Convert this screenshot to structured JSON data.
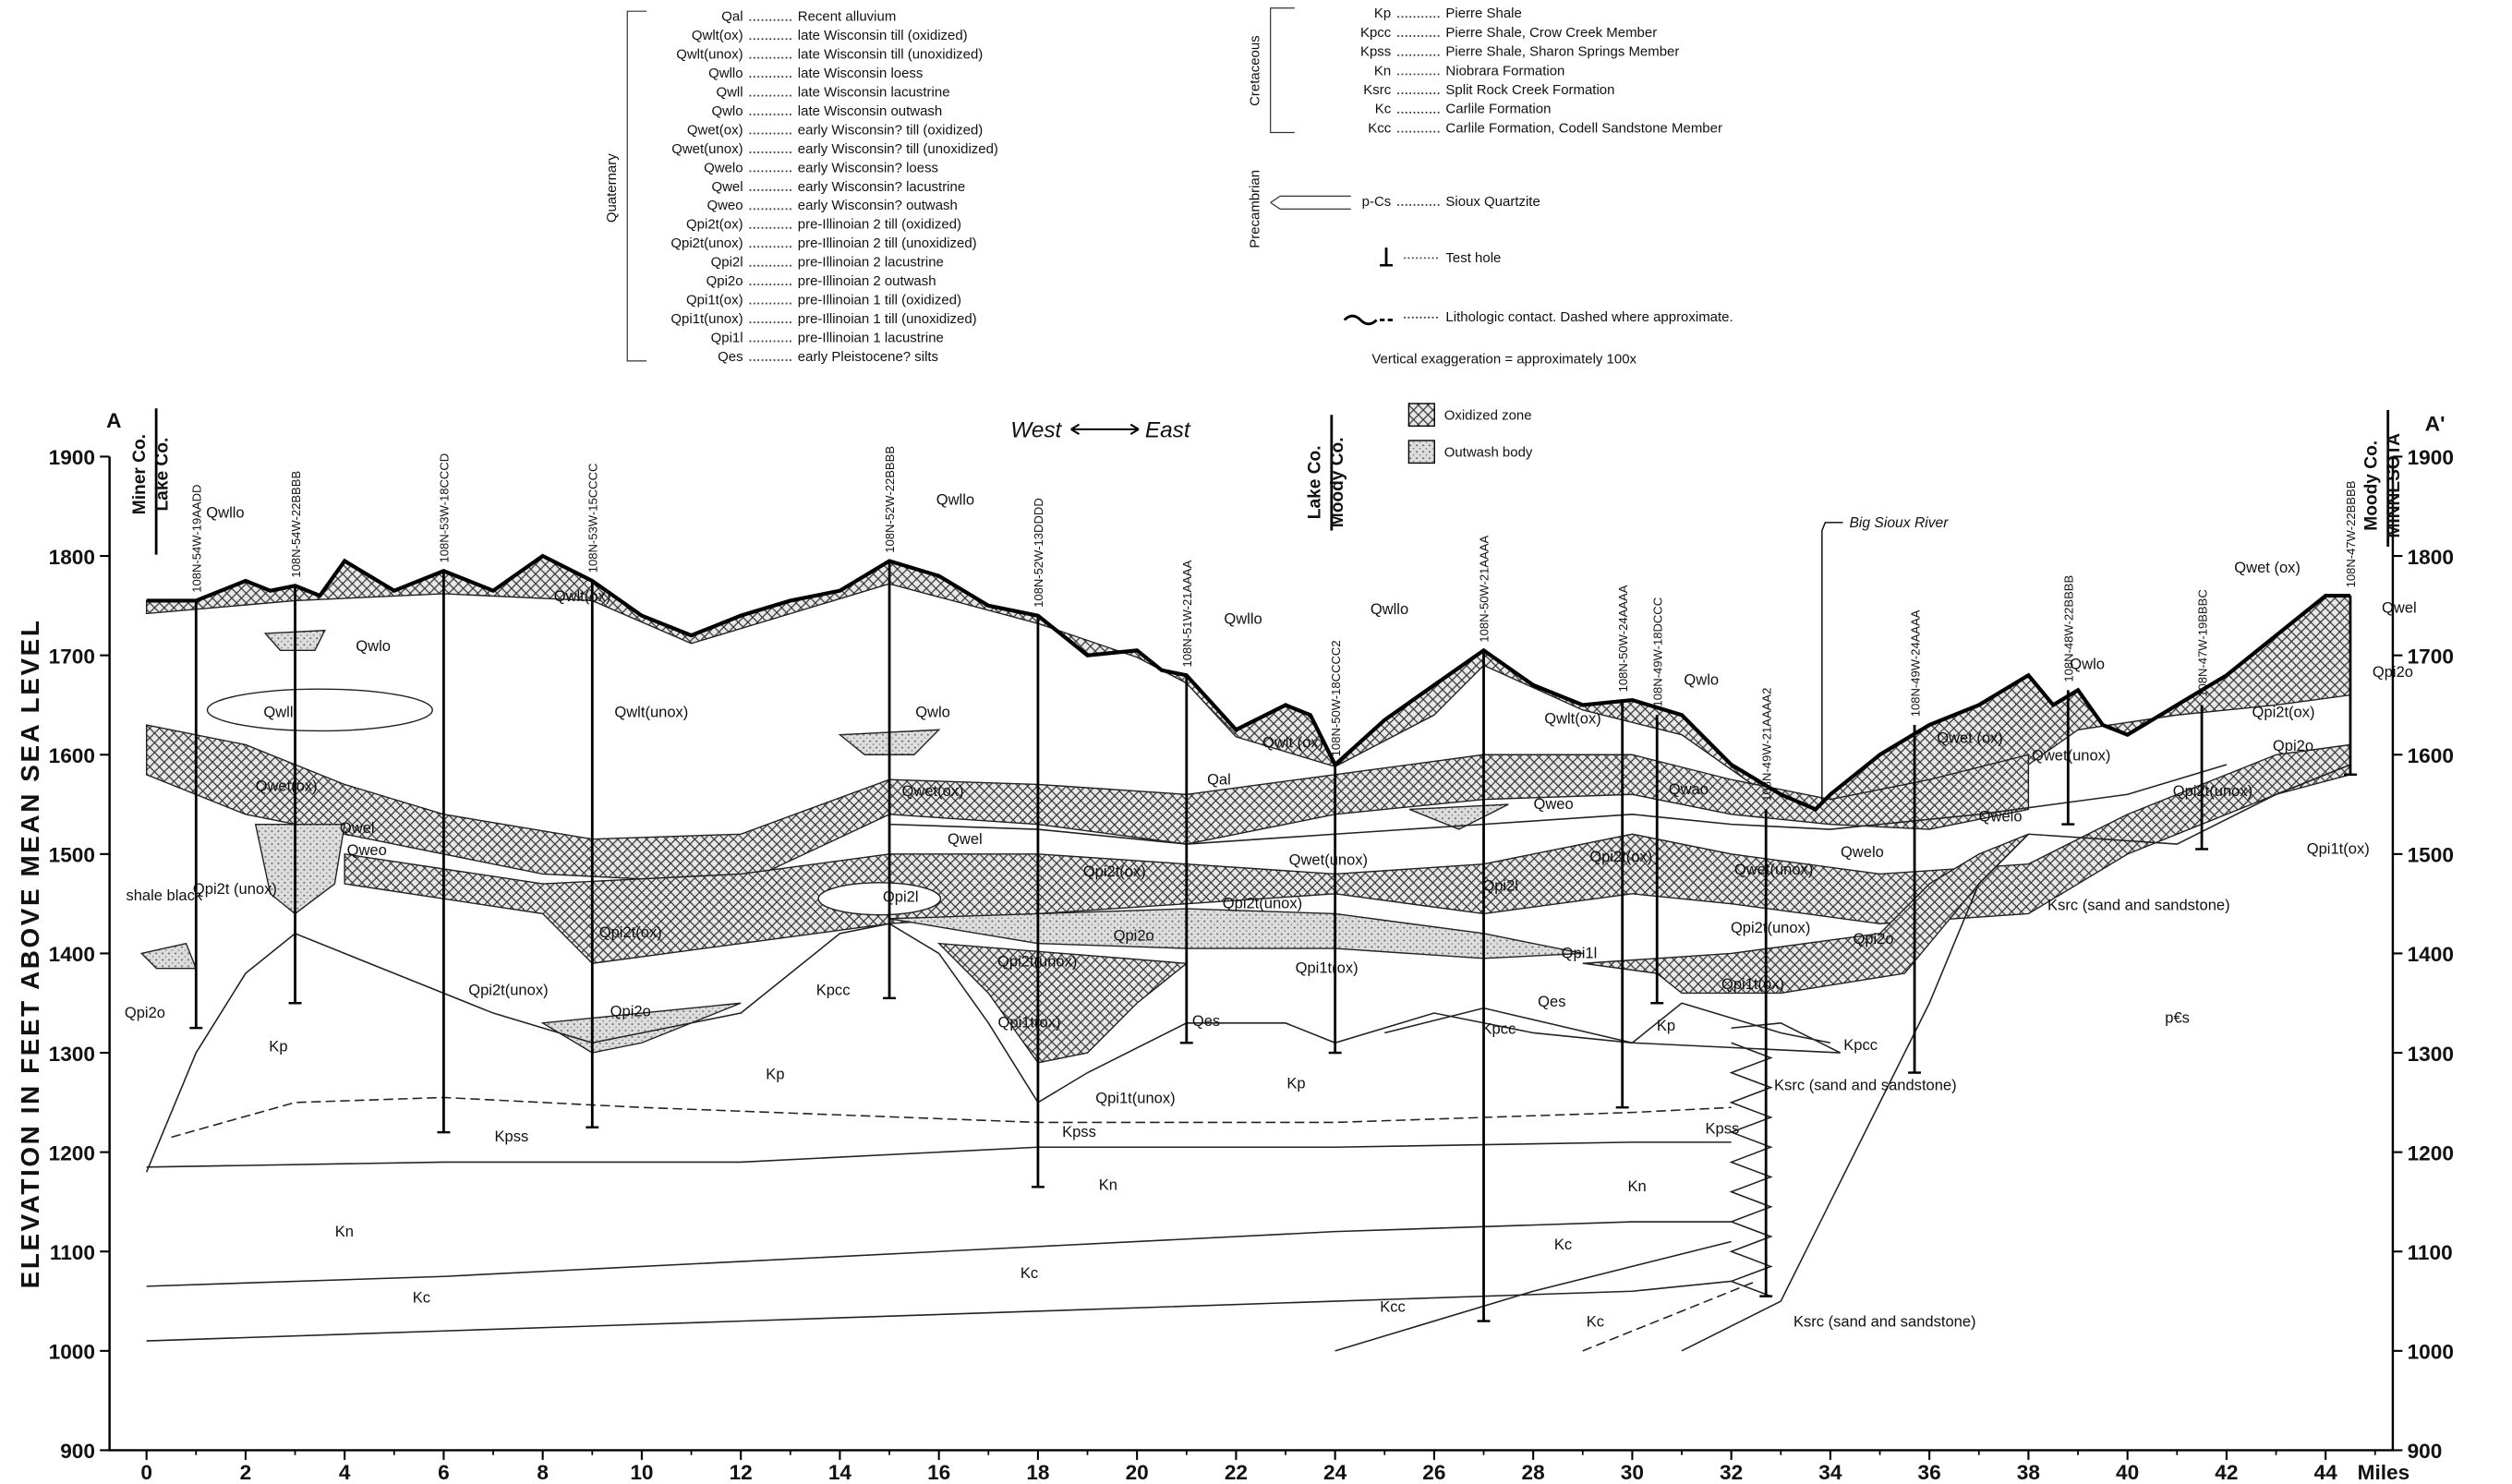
{
  "legend": {
    "quaternary": {
      "label": "Quaternary",
      "entries": [
        {
          "code": "Qal",
          "description": "Recent alluvium"
        },
        {
          "code": "Qwlt(ox)",
          "description": "late Wisconsin till (oxidized)"
        },
        {
          "code": "Qwlt(unox)",
          "description": "late Wisconsin till (unoxidized)"
        },
        {
          "code": "Qwllo",
          "description": "late Wisconsin loess"
        },
        {
          "code": "Qwll",
          "description": "late Wisconsin lacustrine"
        },
        {
          "code": "Qwlo",
          "description": "late Wisconsin outwash"
        },
        {
          "code": "Qwet(ox)",
          "description": "early Wisconsin? till (oxidized)"
        },
        {
          "code": "Qwet(unox)",
          "description": "early Wisconsin? till (unoxidized)"
        },
        {
          "code": "Qwelo",
          "description": "early Wisconsin? loess"
        },
        {
          "code": "Qwel",
          "description": "early Wisconsin? lacustrine"
        },
        {
          "code": "Qweo",
          "description": "early Wisconsin? outwash"
        },
        {
          "code": "Qpi2t(ox)",
          "description": "pre-Illinoian 2 till (oxidized)"
        },
        {
          "code": "Qpi2t(unox)",
          "description": "pre-Illinoian 2 till (unoxidized)"
        },
        {
          "code": "Qpi2l",
          "description": "pre-Illinoian 2 lacustrine"
        },
        {
          "code": "Qpi2o",
          "description": "pre-Illinoian 2 outwash"
        },
        {
          "code": "Qpi1t(ox)",
          "description": "pre-Illinoian 1 till (oxidized)"
        },
        {
          "code": "Qpi1t(unox)",
          "description": "pre-Illinoian 1 till (unoxidized)"
        },
        {
          "code": "Qpi1l",
          "description": "pre-Illinoian 1 lacustrine"
        },
        {
          "code": "Qes",
          "description": "early Pleistocene? silts"
        }
      ]
    },
    "cretaceous": {
      "label": "Cretaceous",
      "entries": [
        {
          "code": "Kp",
          "description": "Pierre Shale"
        },
        {
          "code": "Kpcc",
          "description": "Pierre Shale, Crow Creek Member"
        },
        {
          "code": "Kpss",
          "description": "Pierre Shale, Sharon Springs Member"
        },
        {
          "code": "Kn",
          "description": "Niobrara Formation"
        },
        {
          "code": "Ksrc",
          "description": "Split Rock Creek Formation"
        },
        {
          "code": "Kc",
          "description": "Carlile Formation"
        },
        {
          "code": "Kcc",
          "description": "Carlile Formation, Codell Sandstone Member"
        }
      ]
    },
    "precambrian": {
      "label": "Precambrian",
      "entries": [
        {
          "code": "p-Cs",
          "description": "Sioux Quartzite"
        }
      ]
    },
    "test_hole": "Test hole",
    "contact": "Lithologic contact.  Dashed where approximate.",
    "exaggeration": "Vertical exaggeration = approximately 100x",
    "oxidized": "Oxidized zone",
    "outwash": "Outwash body"
  },
  "section": {
    "start": "A",
    "end": "A'",
    "west": "West",
    "east": "East",
    "y_axis_label": "ELEVATION IN FEET ABOVE MEAN SEA LEVEL",
    "yticks": [
      900,
      1000,
      1100,
      1200,
      1300,
      1400,
      1500,
      1600,
      1700,
      1800,
      1900
    ],
    "xticks": [
      0,
      2,
      4,
      6,
      8,
      10,
      12,
      14,
      16,
      18,
      20,
      22,
      24,
      26,
      28,
      30,
      32,
      34,
      36,
      38,
      40,
      42,
      44
    ],
    "x_unit": "Miles",
    "counties": [
      "Miner Co.",
      "Lake Co.",
      "Lake Co.",
      "Moody Co.",
      "Moody Co.",
      "MINNESOTA"
    ],
    "river": "Big Sioux River",
    "test_holes": [
      "108N-54W-19AADD",
      "108N-54W-22BBBB",
      "108N-53W-18CCCD",
      "108N-53W-15CCCC",
      "108N-52W-22BBBB",
      "108N-52W-13DDDD",
      "108N-51W-21AAAA",
      "108N-50W-18CCCC2",
      "108N-50W-21AAAA",
      "108N-50W-24AAAA",
      "108N-49W-18DCCC",
      "108N-49W-21AAAA2",
      "108N-49W-24AAAA",
      "108N-48W-22BBBB",
      "108N-47W-19BBBC",
      "108N-47W-22BBBB"
    ],
    "units": [
      "Qwllo",
      "Qwlo",
      "Qwll",
      "Qwlt(ox)",
      "Qwlt(unox)",
      "Qwlo",
      "Qwllo",
      "Qwet(ox)",
      "Qwel",
      "Qpi2t (unox)",
      "Qweo",
      "shale black",
      "Qpi2o",
      "Qpi2t(ox)",
      "Qwet(ox)",
      "Qwel",
      "Qpi2t(ox)",
      "Qpi2l",
      "Qpi2t(unox)",
      "Qpi2o",
      "Qpi2t(unox)",
      "Qpi2o",
      "Kpcc",
      "Qpi2t(unox)",
      "Qpi1t(ox)",
      "Qes",
      "Qpi1t(ox)",
      "Qpi1t(unox)",
      "Kp",
      "Kp",
      "Kp",
      "Kpss",
      "Kpss",
      "Kn",
      "Kn",
      "Kc",
      "Kc",
      "Kcc",
      "Qwllo",
      "Qwlt (ox)",
      "Qal",
      "Qwllo",
      "Qwlt(ox)",
      "Qwlo",
      "Qweo",
      "Qwet(unox)",
      "Qpi2t(ox)",
      "Qpi2l",
      "Qwao",
      "Qwet(unox)",
      "Qpi2t(unox)",
      "Qpi1l",
      "Qes",
      "Qpi2o",
      "Qpi1t(ox)",
      "Kp",
      "Kpcc",
      "Kpcc",
      "Ksrc (sand and sandstone)",
      "Kpss",
      "Kn",
      "Kc",
      "Kc",
      "Ksrc (sand and sandstone)",
      "Ksrc (sand and sandstone)",
      "p€s",
      "Qwet (ox)",
      "Qwet(unox)",
      "Qwlo",
      "Qwelo",
      "Qwelo",
      "Qpi2t(ox)",
      "Qpi2o",
      "Qpi2t(unox)",
      "Qpi1t(ox)",
      "Qwet (ox)",
      "Qwel",
      "Qpi2o"
    ]
  }
}
